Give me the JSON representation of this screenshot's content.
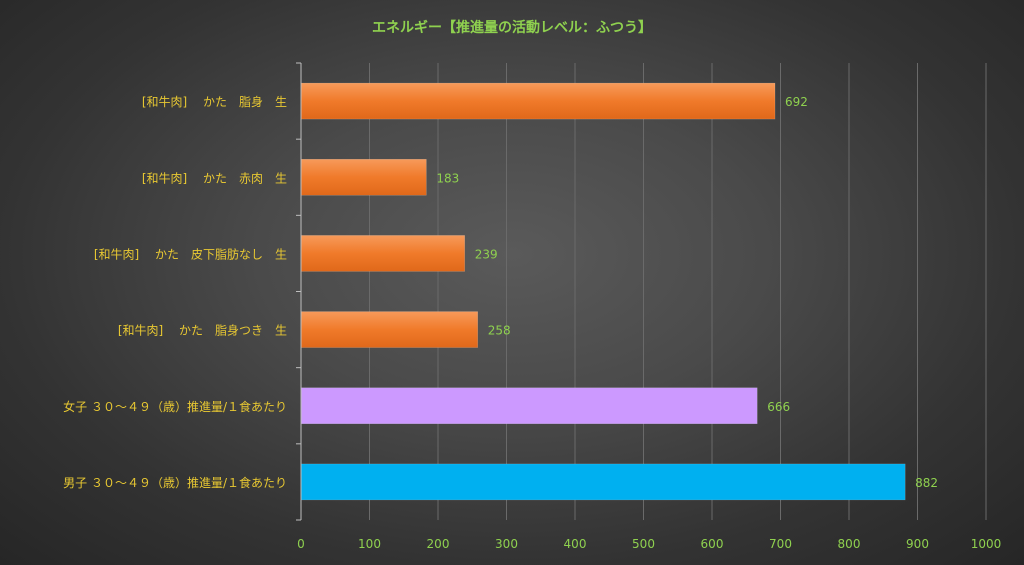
{
  "chart_data": {
    "type": "bar",
    "orientation": "horizontal",
    "title": "エネルギー【推進量の活動レベル：ふつう】",
    "categories": [
      "[和牛肉]　 かた　脂身　生",
      "[和牛肉]　 かた　赤肉　生",
      "[和牛肉]　 かた　皮下脂肪なし　生",
      "[和牛肉]　 かた　脂身つき　生",
      "女子 ３０～４９（歳）推進量/１食あたり",
      "男子 ３０～４９（歳）推進量/１食あたり"
    ],
    "values": [
      692,
      183,
      239,
      258,
      666,
      882
    ],
    "value_labels": [
      "692",
      "183",
      "239",
      "258",
      "666",
      "882"
    ],
    "bar_colors": [
      "#f07a2a",
      "#f07a2a",
      "#f07a2a",
      "#f07a2a",
      "#cc99ff",
      "#00b0f0"
    ],
    "xlim": [
      0,
      1000
    ],
    "xticks": [
      0,
      100,
      200,
      300,
      400,
      500,
      600,
      700,
      800,
      900,
      1000
    ],
    "xtick_labels": [
      "0",
      "100",
      "200",
      "300",
      "400",
      "500",
      "600",
      "700",
      "800",
      "900",
      "1000"
    ],
    "grid": true,
    "legend": false,
    "colors": {
      "title": "#8fd14f",
      "category_label": "#e8c832",
      "value_label": "#8fd14f",
      "tick_label": "#8fd14f",
      "grid": "#6a6a6a",
      "axis": "#bfbfbf"
    }
  }
}
